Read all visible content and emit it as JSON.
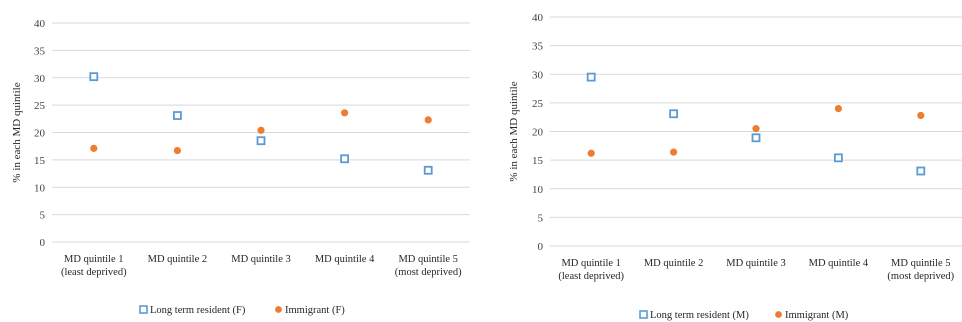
{
  "chart_data": [
    {
      "type": "scatter",
      "title": "",
      "xlabel": "",
      "ylabel": "% in each MD quintile",
      "ylim": [
        0,
        40
      ],
      "yticks": [
        0,
        5,
        10,
        15,
        20,
        25,
        30,
        35,
        40
      ],
      "grid": true,
      "legend_position": "bottom",
      "categories": [
        [
          "MD quintile 1",
          "(least deprived)"
        ],
        [
          "MD quintile 2"
        ],
        [
          "MD quintile 3"
        ],
        [
          "MD quintile 4"
        ],
        [
          "MD quintile 5",
          "(most deprived)"
        ]
      ],
      "series": [
        {
          "name": "Long term resident (F)",
          "marker": "open-square",
          "color": "#5b9bd5",
          "values": [
            30.2,
            23.1,
            18.5,
            15.2,
            13.1
          ]
        },
        {
          "name": "Immigrant (F)",
          "marker": "filled-circle",
          "color": "#ed7d31",
          "values": [
            17.1,
            16.7,
            20.4,
            23.6,
            22.3
          ]
        }
      ]
    },
    {
      "type": "scatter",
      "title": "",
      "xlabel": "",
      "ylabel": "% in each MD quintile",
      "ylim": [
        0,
        40
      ],
      "yticks": [
        0,
        5,
        10,
        15,
        20,
        25,
        30,
        35,
        40
      ],
      "grid": true,
      "legend_position": "bottom",
      "categories": [
        [
          "MD quintile 1",
          "(least deprived)"
        ],
        [
          "MD quintile 2"
        ],
        [
          "MD quintile 3"
        ],
        [
          "MD quintile 4"
        ],
        [
          "MD quintile 5",
          "(most deprived)"
        ]
      ],
      "series": [
        {
          "name": "Long term resident (M)",
          "marker": "open-square",
          "color": "#5b9bd5",
          "values": [
            29.5,
            23.1,
            18.9,
            15.4,
            13.1
          ]
        },
        {
          "name": "Immigrant (M)",
          "marker": "filled-circle",
          "color": "#ed7d31",
          "values": [
            16.2,
            16.4,
            20.5,
            24.0,
            22.8
          ]
        }
      ]
    }
  ]
}
